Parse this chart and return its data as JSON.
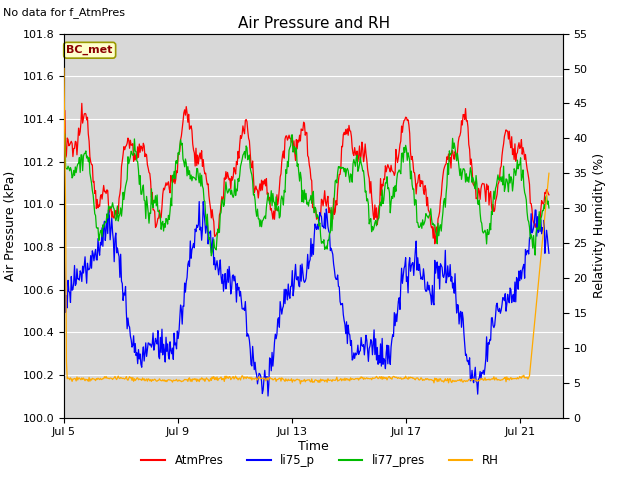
{
  "title": "Air Pressure and RH",
  "subtitle": "No data for f_AtmPres",
  "xlabel": "Time",
  "ylabel_left": "Air Pressure (kPa)",
  "ylabel_right": "Relativity Humidity (%)",
  "annotation": "BC_met",
  "ylim_left": [
    100.0,
    101.8
  ],
  "ylim_right": [
    0,
    55
  ],
  "yticks_left": [
    100.0,
    100.2,
    100.4,
    100.6,
    100.8,
    101.0,
    101.2,
    101.4,
    101.6,
    101.8
  ],
  "yticks_right": [
    0,
    5,
    10,
    15,
    20,
    25,
    30,
    35,
    40,
    45,
    50,
    55
  ],
  "xtick_labels": [
    "Jul 5",
    "Jul 9",
    "Jul 13",
    "Jul 17",
    "Jul 21"
  ],
  "xtick_positions": [
    0,
    4,
    8,
    12,
    16
  ],
  "xlim": [
    0,
    17.5
  ],
  "colors": {
    "AtmPres": "#ff0000",
    "li75_p": "#0000ff",
    "li77_pres": "#00bb00",
    "RH": "#ffaa00",
    "plot_bg": "#d8d8d8",
    "fig_bg": "#ffffff",
    "grid": "#ffffff"
  },
  "legend_labels": [
    "AtmPres",
    "li75_p",
    "li77_pres",
    "RH"
  ],
  "n_points": 600,
  "time_end": 17.0
}
